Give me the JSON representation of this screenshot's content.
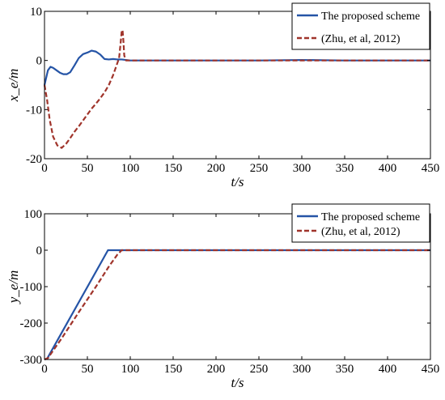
{
  "chart_data": [
    {
      "type": "line",
      "xlabel": "t/s",
      "ylabel": "x_e/m",
      "xlim": [
        0,
        450
      ],
      "ylim": [
        -20,
        10
      ],
      "xticks": [
        "0",
        "50",
        "100",
        "150",
        "200",
        "250",
        "300",
        "350",
        "400",
        "450"
      ],
      "yticks": [
        "10",
        "0",
        "-10",
        "-20"
      ],
      "legend_placement": "top-right",
      "series": [
        {
          "name": "The proposed scheme",
          "color": "#2554a6",
          "style": "solid",
          "x": [
            0,
            2,
            4,
            7,
            10,
            14,
            18,
            22,
            26,
            30,
            35,
            40,
            45,
            50,
            55,
            60,
            65,
            70,
            75,
            80,
            85,
            90,
            100,
            150,
            200,
            250,
            300,
            350,
            400,
            450
          ],
          "y": [
            -5,
            -3.5,
            -2,
            -1.3,
            -1.5,
            -2,
            -2.5,
            -2.8,
            -2.8,
            -2.4,
            -1,
            0.5,
            1.3,
            1.6,
            2,
            1.8,
            1.2,
            0.3,
            0.2,
            0.3,
            0.2,
            0.2,
            0,
            0,
            0,
            0,
            0.1,
            0,
            0,
            0
          ]
        },
        {
          "name": "(Zhu, et al, 2012)",
          "color": "#a0342b",
          "style": "dashed",
          "x": [
            0,
            3,
            6,
            10,
            15,
            20,
            25,
            30,
            35,
            40,
            45,
            50,
            55,
            60,
            65,
            70,
            75,
            80,
            84,
            87,
            89,
            90,
            91,
            92,
            93,
            95,
            100,
            150,
            200,
            250,
            300,
            350,
            400,
            450
          ],
          "y": [
            -5,
            -8,
            -12,
            -15.5,
            -17.3,
            -17.8,
            -17,
            -15.8,
            -14.5,
            -13.4,
            -12.2,
            -11,
            -9.8,
            -8.8,
            -7.7,
            -6.5,
            -5,
            -3,
            -1,
            0.5,
            4,
            6,
            6.2,
            4,
            1,
            0,
            0,
            0,
            0,
            0,
            0,
            0,
            0,
            0
          ]
        }
      ]
    },
    {
      "type": "line",
      "xlabel": "t/s",
      "ylabel": "y_e/m",
      "xlim": [
        0,
        450
      ],
      "ylim": [
        -300,
        100
      ],
      "xticks": [
        "0",
        "50",
        "100",
        "150",
        "200",
        "250",
        "300",
        "350",
        "400",
        "450"
      ],
      "yticks": [
        "100",
        "0",
        "-100",
        "-200",
        "-300"
      ],
      "legend_placement": "top-right",
      "series": [
        {
          "name": "The proposed scheme",
          "color": "#2554a6",
          "style": "solid",
          "x": [
            0,
            3,
            74,
            76,
            450
          ],
          "y": [
            -300,
            -298,
            0,
            0,
            0
          ]
        },
        {
          "name": "(Zhu, et al, 2012)",
          "color": "#a0342b",
          "style": "dashed",
          "x": [
            0,
            4,
            20,
            40,
            60,
            75,
            85,
            90,
            93,
            450
          ],
          "y": [
            -300,
            -296,
            -242,
            -170,
            -100,
            -45,
            -12,
            0,
            0,
            0
          ]
        }
      ]
    }
  ]
}
